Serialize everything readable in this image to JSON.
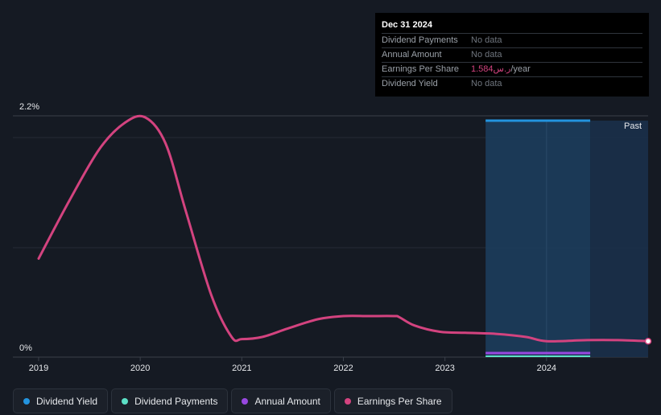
{
  "tooltip": {
    "date": "Dec 31 2024",
    "rows": [
      {
        "label": "Dividend Payments",
        "value": "No data"
      },
      {
        "label": "Annual Amount",
        "value": "No data"
      },
      {
        "label": "Earnings Per Share",
        "value": "1.584ر.س",
        "unit": "/year"
      },
      {
        "label": "Dividend Yield",
        "value": "No data"
      }
    ]
  },
  "legend": [
    {
      "label": "Dividend Yield",
      "color": "#2394df"
    },
    {
      "label": "Dividend Payments",
      "color": "#5ce0c6"
    },
    {
      "label": "Annual Amount",
      "color": "#9848e0"
    },
    {
      "label": "Earnings Per Share",
      "color": "#d3437f"
    }
  ],
  "chart_data": {
    "type": "line",
    "title": "",
    "xlabel": "",
    "ylabel": "",
    "ylim": [
      0,
      2.2
    ],
    "y_tick_labels": [
      "2.2%",
      "0%"
    ],
    "x_tick_labels": [
      "2019",
      "2020",
      "2021",
      "2022",
      "2023",
      "2024"
    ],
    "xlim": [
      2019.0,
      2025.0
    ],
    "past_label": "Past",
    "past_region": [
      2023.4,
      2025.0
    ],
    "series": [
      {
        "name": "Earnings Per Share",
        "color": "#d3437f",
        "x": [
          2019.0,
          2019.3,
          2019.6,
          2019.85,
          2020.05,
          2020.25,
          2020.45,
          2020.7,
          2020.9,
          2021.0,
          2021.2,
          2021.45,
          2021.75,
          2022.0,
          2022.25,
          2022.5,
          2022.55,
          2022.7,
          2022.95,
          2023.2,
          2023.5,
          2023.8,
          2024.0,
          2024.4,
          2024.7,
          2025.0
        ],
        "y": [
          0.85,
          1.4,
          1.9,
          2.15,
          2.2,
          1.95,
          1.3,
          0.5,
          0.1,
          0.08,
          0.1,
          0.18,
          0.27,
          0.3,
          0.3,
          0.3,
          0.29,
          0.21,
          0.15,
          0.14,
          0.13,
          0.1,
          0.06,
          0.07,
          0.07,
          0.06
        ]
      },
      {
        "name": "Dividend Yield",
        "color": "#2394df",
        "x": [
          2023.4,
          2024.43
        ],
        "y": [
          2.15,
          2.15
        ]
      },
      {
        "name": "Annual Amount",
        "color": "#9848e0",
        "x": [
          2023.4,
          2024.43
        ],
        "y": [
          0.04,
          0.04
        ]
      },
      {
        "name": "Dividend Payments",
        "color": "#5ce0c6",
        "x": [
          2023.4,
          2024.43
        ],
        "y": [
          0.0,
          0.0
        ]
      }
    ]
  }
}
